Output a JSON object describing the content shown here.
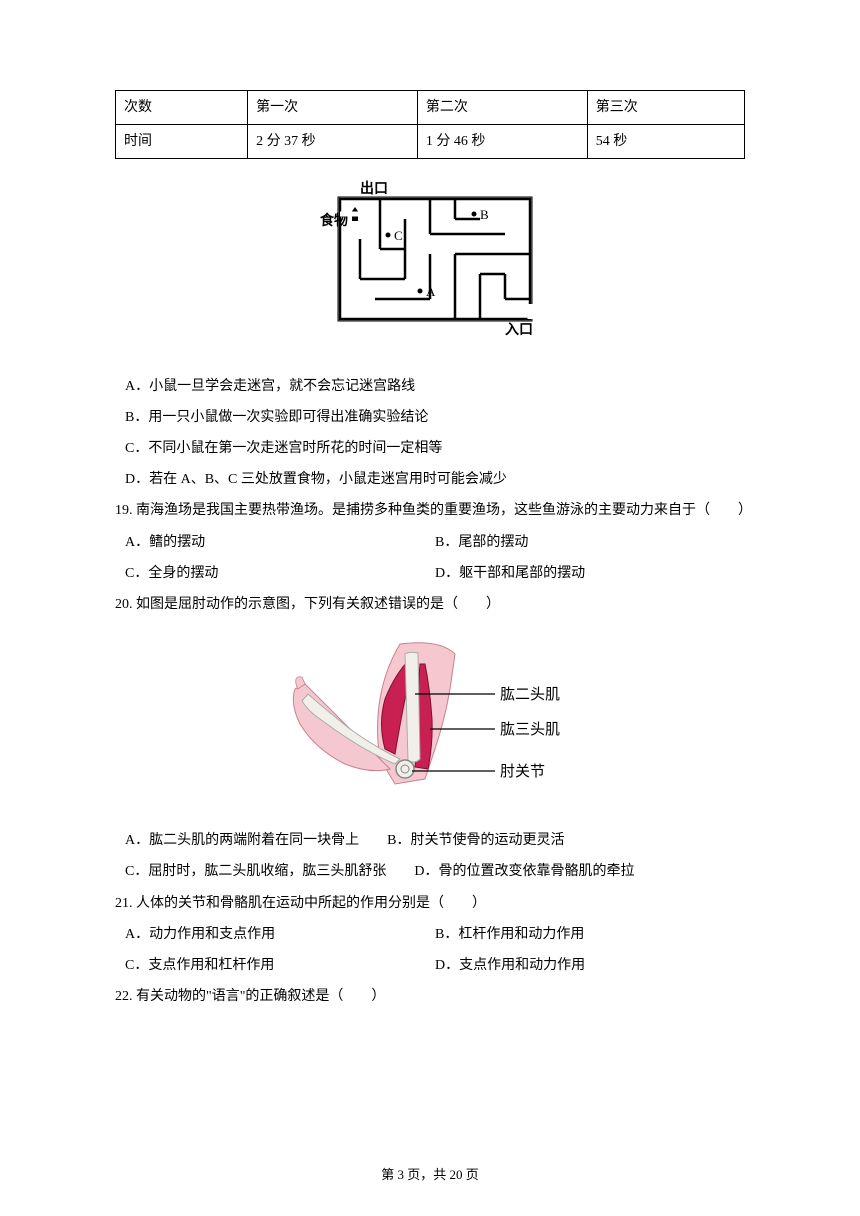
{
  "table": {
    "rows": [
      [
        "次数",
        "第一次",
        "第二次",
        "第三次"
      ],
      [
        "时间",
        "2 分 37 秒",
        "1 分 46 秒",
        "54 秒"
      ]
    ],
    "col_widths": [
      "21%",
      "27%",
      "27%",
      "25%"
    ]
  },
  "maze": {
    "label_exit": "出口",
    "label_food": "食物",
    "label_entrance": "入口",
    "point_a": "A",
    "point_b": "B",
    "point_c": "C"
  },
  "options_18": [
    "A．小鼠一旦学会走迷宫，就不会忘记迷宫路线",
    "B．用一只小鼠做一次实验即可得出准确实验结论",
    "C．不同小鼠在第一次走迷宫时所花的时间一定相等",
    "D．若在 A、B、C 三处放置食物，小鼠走迷宫用时可能会减少"
  ],
  "q19": {
    "text": "19. 南海渔场是我国主要热带渔场。是捕捞多种鱼类的重要渔场，这些鱼游泳的主要动力来自于（　　）",
    "options": [
      [
        "A．鳍的摆动",
        "B．尾部的摆动"
      ],
      [
        "C．全身的摆动",
        "D．躯干部和尾部的摆动"
      ]
    ]
  },
  "q20": {
    "text": "20. 如图是屈肘动作的示意图，下列有关叙述错误的是（　　）",
    "labels": {
      "biceps": "肱二头肌",
      "triceps": "肱三头肌",
      "elbow": "肘关节"
    },
    "options_line1": [
      "A．肱二头肌的两端附着在同一块骨上",
      "B．肘关节使骨的运动更灵活"
    ],
    "options_line2": [
      "C．屈肘时，肱二头肌收缩，肱三头肌舒张",
      "D．骨的位置改变依靠骨骼肌的牵拉"
    ]
  },
  "q21": {
    "text": "21. 人体的关节和骨骼肌在运动中所起的作用分别是（　　）",
    "options": [
      [
        "A．动力作用和支点作用",
        "B．杠杆作用和动力作用"
      ],
      [
        "C．支点作用和杠杆作用",
        "D．支点作用和动力作用"
      ]
    ]
  },
  "q22": {
    "text": "22. 有关动物的\"语言\"的正确叙述是（　　）"
  },
  "footer": "第 3 页，共 20 页"
}
